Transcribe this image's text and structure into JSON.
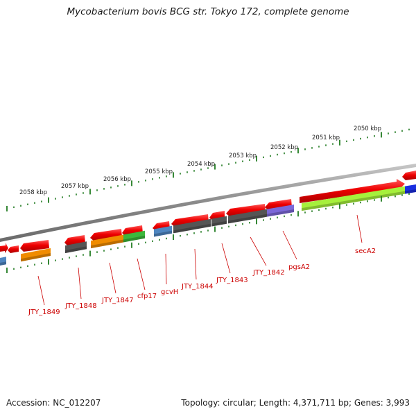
{
  "title": "Mycobacterium bovis BCG str. Tokyo 172, complete genome",
  "accession": "Accession: NC_012207",
  "topology": "Topology: circular; Length: 4,371,711 bp; Genes: 3,993",
  "colors": {
    "forward_gene": "#ee0000",
    "backbone": "#8a8a8a",
    "tick": "#1f7a1f",
    "label": "#cc0000"
  },
  "kbp_ticks": [
    "2058 kbp",
    "2057 kbp",
    "2056 kbp",
    "2055 kbp",
    "2054 kbp",
    "2053 kbp",
    "2052 kbp",
    "2051 kbp",
    "2050 kbp"
  ],
  "gene_labels": [
    "JTY_1849",
    "JTY_1848",
    "JTY_1847",
    "cfp17",
    "gcvH",
    "JTY_1844",
    "JTY_1843",
    "JTY_1842",
    "pgsA2",
    "secA2"
  ],
  "lane_colors": [
    "#4f86c0",
    "#f08c00",
    "#555555",
    "#f08c00",
    "#3cb83c",
    "#4f86c0",
    "#555555",
    "#555555",
    "#555555",
    "#7b68d8",
    "#a6f03c",
    "#1a2ee0"
  ]
}
